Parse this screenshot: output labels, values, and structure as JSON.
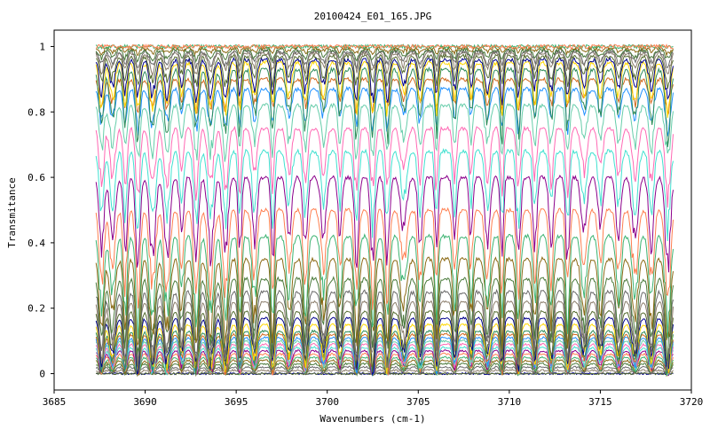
{
  "chart_data": {
    "type": "line",
    "title": "20100424_E01_165.JPG",
    "xlabel": "Wavenumbers (cm-1)",
    "ylabel": "Transmitance",
    "xlim": [
      3685,
      3720
    ],
    "ylim": [
      -0.05,
      1.05
    ],
    "x_ticks": [
      "3685",
      "3690",
      "3695",
      "3700",
      "3705",
      "3710",
      "3715",
      "3720"
    ],
    "y_ticks": [
      "0",
      "0.2",
      "0.4",
      "0.6",
      "0.8",
      "1"
    ],
    "x_range": [
      3687.3,
      3719.0
    ],
    "grid": false,
    "legend": "none",
    "line_colors": [
      "#00008b",
      "#556b2f",
      "#8b7d6b",
      "#696969",
      "#4a7a3a",
      "#8b6914",
      "#3cb371",
      "#ff7f50",
      "#8b008b",
      "#40e0d0",
      "#ff69b4",
      "#66cdaa",
      "#1e90ff",
      "#d2691e",
      "#2e8b57",
      "#ffd700"
    ],
    "series_baselines": [
      0.0,
      0.0,
      0.01,
      0.02,
      0.03,
      0.04,
      0.05,
      0.06,
      0.07,
      0.08,
      0.09,
      0.1,
      0.11,
      0.12,
      0.13,
      0.15,
      0.17,
      0.19,
      0.22,
      0.25,
      0.29,
      0.35,
      0.42,
      0.5,
      0.6,
      0.68,
      0.75,
      0.82,
      0.87,
      0.9,
      0.93,
      0.95,
      0.96,
      0.97,
      0.98,
      0.985,
      0.99,
      0.995,
      1.0,
      1.0
    ],
    "absorption_lines_cm1": [
      3687.6,
      3688.2,
      3688.9,
      3689.6,
      3690.4,
      3691.2,
      3692.0,
      3692.8,
      3693.6,
      3694.4,
      3695.2,
      3696.0,
      3697.0,
      3697.9,
      3698.8,
      3699.8,
      3700.7,
      3701.6,
      3702.5,
      3703.3,
      3704.2,
      3705.1,
      3706.0,
      3707.0,
      3707.9,
      3708.8,
      3709.6,
      3710.5,
      3711.4,
      3712.3,
      3713.2,
      3714.1,
      3715.0,
      3716.0,
      3716.9,
      3717.8,
      3718.7
    ]
  }
}
